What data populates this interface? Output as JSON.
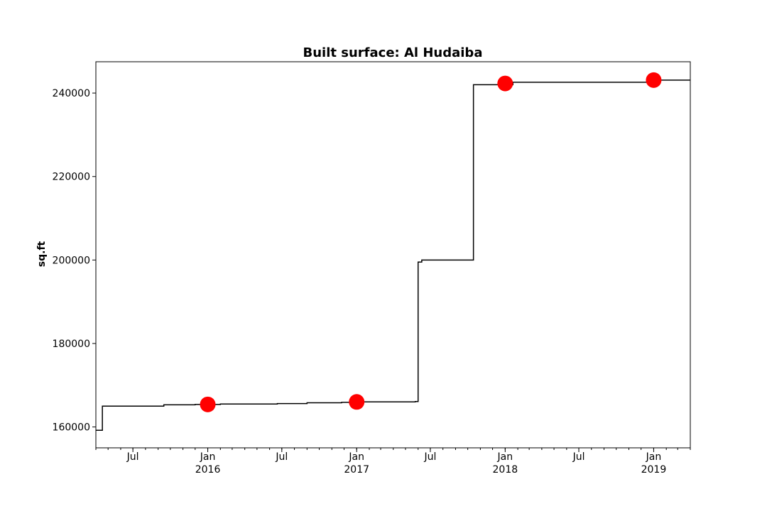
{
  "chart_data": {
    "type": "line",
    "title": "Built surface: Al Hudaiba",
    "xlabel": "",
    "ylabel": "sq.ft",
    "xlim": [
      "2015-04-01",
      "2019-04-01"
    ],
    "ylim": [
      155000,
      247500
    ],
    "grid": false,
    "y_ticks": [
      160000,
      180000,
      200000,
      220000,
      240000
    ],
    "x_ticks": [
      {
        "date": "2015-07-01",
        "label": "Jul",
        "year": ""
      },
      {
        "date": "2016-01-01",
        "label": "Jan",
        "year": "2016"
      },
      {
        "date": "2016-07-01",
        "label": "Jul",
        "year": ""
      },
      {
        "date": "2017-01-01",
        "label": "Jan",
        "year": "2017"
      },
      {
        "date": "2017-07-01",
        "label": "Jul",
        "year": ""
      },
      {
        "date": "2018-01-01",
        "label": "Jan",
        "year": "2018"
      },
      {
        "date": "2018-07-01",
        "label": "Jul",
        "year": ""
      },
      {
        "date": "2019-01-01",
        "label": "Jan",
        "year": "2019"
      }
    ],
    "series": [
      {
        "style": "step",
        "color": "#000000",
        "points": [
          {
            "x": "2015-04-01",
            "y": 159200
          },
          {
            "x": "2015-04-17",
            "y": 165000
          },
          {
            "x": "2015-09-15",
            "y": 165300
          },
          {
            "x": "2015-12-01",
            "y": 165400
          },
          {
            "x": "2016-02-01",
            "y": 165500
          },
          {
            "x": "2016-06-20",
            "y": 165600
          },
          {
            "x": "2016-09-01",
            "y": 165800
          },
          {
            "x": "2016-11-25",
            "y": 165900
          },
          {
            "x": "2017-01-15",
            "y": 166000
          },
          {
            "x": "2017-05-25",
            "y": 166100
          },
          {
            "x": "2017-06-01",
            "y": 199500
          },
          {
            "x": "2017-06-10",
            "y": 200000
          },
          {
            "x": "2017-10-15",
            "y": 242000
          },
          {
            "x": "2018-01-20",
            "y": 242600
          },
          {
            "x": "2019-01-01",
            "y": 243100
          },
          {
            "x": "2019-04-01",
            "y": 243100
          }
        ]
      },
      {
        "style": "markers",
        "color": "#ff0000",
        "points": [
          {
            "x": "2016-01-01",
            "y": 165400
          },
          {
            "x": "2017-01-01",
            "y": 166000
          },
          {
            "x": "2018-01-01",
            "y": 242300
          },
          {
            "x": "2019-01-01",
            "y": 243100
          }
        ]
      }
    ]
  }
}
